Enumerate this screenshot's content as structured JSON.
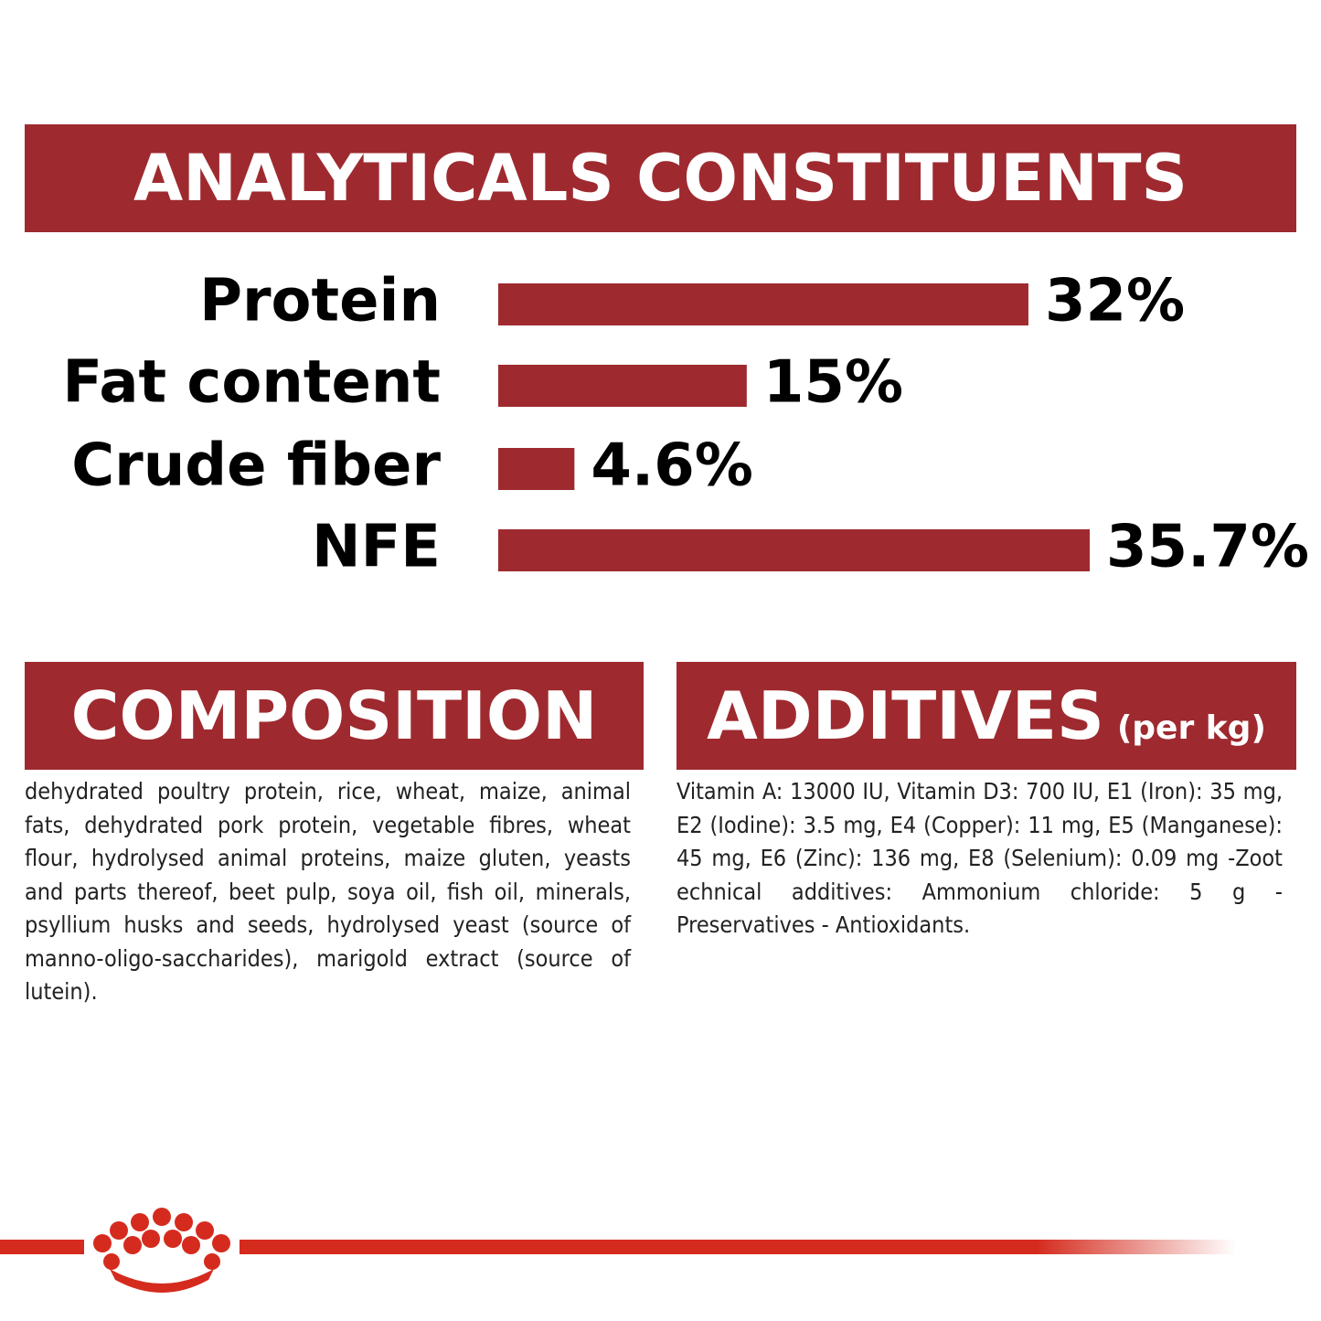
{
  "header": {
    "title": "ANALYTICALS CONSTITUENTS"
  },
  "chart_data": {
    "type": "bar",
    "orientation": "horizontal",
    "categories": [
      "Protein",
      "Fat content",
      "Crude fiber",
      "NFE"
    ],
    "values": [
      32,
      15,
      4.6,
      35.7
    ],
    "value_labels": [
      "32%",
      "15%",
      "4.6%",
      "35.7%"
    ],
    "color": "#9e2a2f"
  },
  "composition": {
    "title": "COMPOSITION",
    "text": "dehydrated poultry protein, rice, wheat, maize, animal fats, dehydrated pork protein, vegetable fibres, wheat flour, hydrolysed animal proteins, maize gluten, yeasts and parts thereof, beet pulp, soya oil, fish oil, minerals, psyllium husks and seeds, hydrolysed yeast (source of manno-oligo-saccharides), marigold extract (source of lutein)."
  },
  "additives": {
    "title": "ADDITIVES",
    "unit": "(per kg)",
    "text": "Vitamin A: 13000 IU, Vitamin D3: 700 IU, E1 (Iron): 35 mg, E2 (Iodine): 3.5 mg, E4 (Copper): 11 mg, E5 (Manganese): 45 mg, E6 (Zinc): 136 mg, E8 (Selenium): 0.09 mg -Zoot echnical additives: Ammonium chloride: 5 g - Preservatives - Antioxidants."
  }
}
